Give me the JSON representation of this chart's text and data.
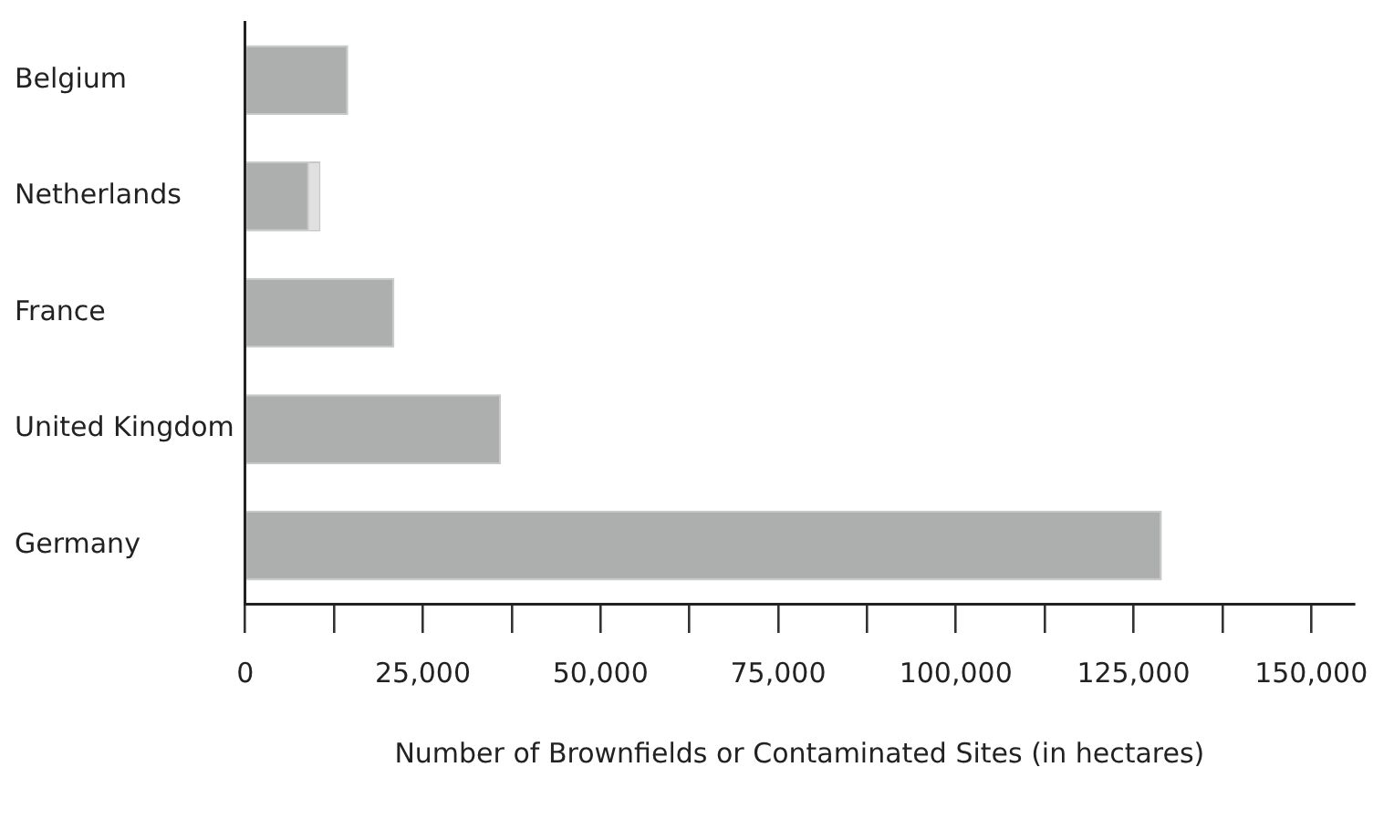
{
  "chart_data": {
    "type": "bar",
    "orientation": "horizontal",
    "stacked": true,
    "categories": [
      "Belgium",
      "Netherlands",
      "France",
      "United Kingdom",
      "Germany"
    ],
    "series": [
      {
        "color": "#adaeae",
        "values": [
          14500,
          9000,
          21000,
          36000,
          129000
        ]
      },
      {
        "color": "#e0e0e0",
        "values": [
          null,
          1600,
          null,
          null,
          null
        ]
      }
    ],
    "xlabel": "Number of Brownfields or Contaminated Sites (in hectares)",
    "xlim": [
      0,
      156000
    ],
    "xticks": [
      0,
      {
        "value": 12500,
        "label": null
      },
      {
        "value": 25000,
        "label": "25,000"
      },
      {
        "value": 37500,
        "label": null
      },
      {
        "value": 50000,
        "label": "50,000"
      },
      {
        "value": 62500,
        "label": null
      },
      {
        "value": 75000,
        "label": "75,000"
      },
      {
        "value": 87500,
        "label": null
      },
      {
        "value": 100000,
        "label": "100,000"
      },
      {
        "value": 112500,
        "label": null
      },
      {
        "value": 125000,
        "label": "125,000"
      },
      {
        "value": 137500,
        "label": null
      },
      {
        "value": 150000,
        "label": "150,000"
      }
    ],
    "grid": false,
    "legend": false
  }
}
